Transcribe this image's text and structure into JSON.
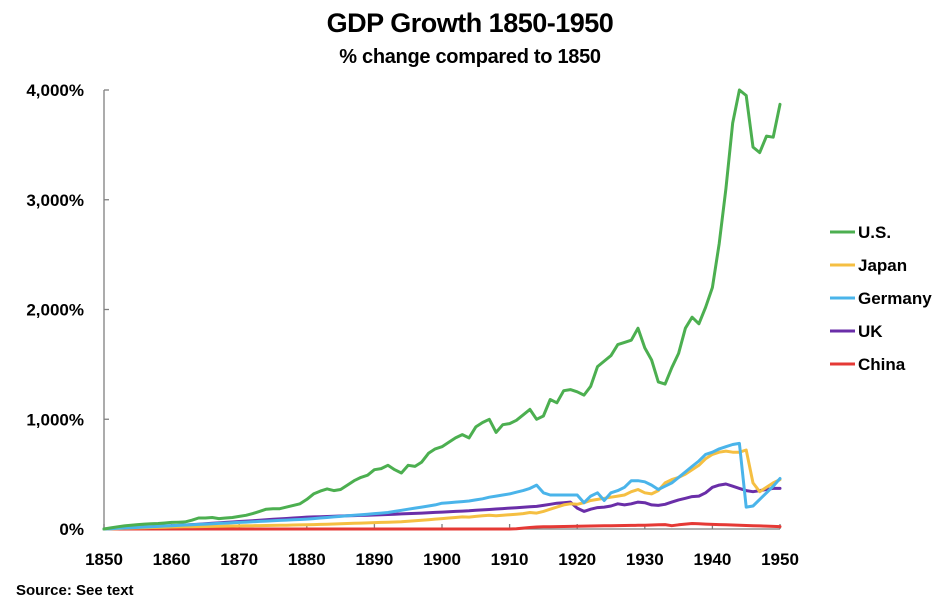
{
  "chart_data": {
    "type": "line",
    "title": "GDP Growth 1850-1950",
    "subtitle": "% change compared to 1850",
    "xlabel": "",
    "ylabel": "",
    "source": "Source: See text",
    "xlim": [
      1850,
      1950
    ],
    "ylim": [
      0,
      4000
    ],
    "x_ticks": [
      1850,
      1860,
      1870,
      1880,
      1890,
      1900,
      1910,
      1920,
      1930,
      1940,
      1950
    ],
    "y_ticks": [
      0,
      1000,
      2000,
      3000,
      4000
    ],
    "y_tick_labels": [
      "0%",
      "1,000%",
      "2,000%",
      "3,000%",
      "4,000%"
    ],
    "grid": false,
    "legend_position": "right",
    "x": [
      1850,
      1851,
      1852,
      1853,
      1854,
      1855,
      1856,
      1857,
      1858,
      1859,
      1860,
      1861,
      1862,
      1863,
      1864,
      1865,
      1866,
      1867,
      1868,
      1869,
      1870,
      1871,
      1872,
      1873,
      1874,
      1875,
      1876,
      1877,
      1878,
      1879,
      1880,
      1881,
      1882,
      1883,
      1884,
      1885,
      1886,
      1887,
      1888,
      1889,
      1890,
      1891,
      1892,
      1893,
      1894,
      1895,
      1896,
      1897,
      1898,
      1899,
      1900,
      1901,
      1902,
      1903,
      1904,
      1905,
      1906,
      1907,
      1908,
      1909,
      1910,
      1911,
      1912,
      1913,
      1914,
      1915,
      1916,
      1917,
      1918,
      1919,
      1920,
      1921,
      1922,
      1923,
      1924,
      1925,
      1926,
      1927,
      1928,
      1929,
      1930,
      1931,
      1932,
      1933,
      1934,
      1935,
      1936,
      1937,
      1938,
      1939,
      1940,
      1941,
      1942,
      1943,
      1944,
      1945,
      1946,
      1947,
      1948,
      1949,
      1950
    ],
    "series": [
      {
        "name": "U.S.",
        "color": "#4caf50",
        "values": [
          0,
          10,
          20,
          28,
          35,
          40,
          45,
          48,
          50,
          55,
          60,
          62,
          65,
          80,
          100,
          100,
          105,
          95,
          100,
          105,
          115,
          125,
          140,
          160,
          180,
          185,
          185,
          200,
          215,
          230,
          270,
          320,
          345,
          365,
          350,
          360,
          400,
          440,
          470,
          490,
          540,
          550,
          580,
          540,
          510,
          580,
          570,
          610,
          690,
          730,
          750,
          790,
          830,
          860,
          830,
          930,
          970,
          1000,
          880,
          950,
          960,
          990,
          1040,
          1090,
          1000,
          1030,
          1180,
          1150,
          1260,
          1270,
          1250,
          1220,
          1300,
          1480,
          1530,
          1580,
          1680,
          1700,
          1720,
          1830,
          1650,
          1540,
          1340,
          1320,
          1470,
          1600,
          1830,
          1930,
          1870,
          2020,
          2200,
          2600,
          3100,
          3700,
          4000,
          3950,
          3480,
          3430,
          3580,
          3570,
          3870
        ]
      },
      {
        "name": "Japan",
        "color": "#f5bf42",
        "values": [
          0,
          2,
          4,
          6,
          8,
          10,
          12,
          14,
          15,
          16,
          18,
          19,
          20,
          21,
          22,
          23,
          24,
          25,
          26,
          27,
          28,
          29,
          30,
          31,
          32,
          33,
          34,
          35,
          36,
          37,
          38,
          40,
          42,
          44,
          46,
          48,
          50,
          52,
          54,
          56,
          58,
          60,
          62,
          64,
          66,
          70,
          75,
          80,
          85,
          90,
          95,
          100,
          105,
          110,
          108,
          115,
          120,
          125,
          120,
          125,
          130,
          135,
          140,
          150,
          145,
          160,
          180,
          200,
          220,
          230,
          225,
          240,
          260,
          270,
          280,
          290,
          300,
          310,
          340,
          360,
          330,
          320,
          350,
          420,
          450,
          470,
          500,
          540,
          580,
          640,
          680,
          700,
          710,
          700,
          700,
          720,
          420,
          340,
          380,
          420,
          450
        ]
      },
      {
        "name": "Germany",
        "color": "#4ab4ea",
        "values": [
          0,
          3,
          6,
          9,
          12,
          15,
          18,
          21,
          24,
          27,
          30,
          33,
          36,
          39,
          42,
          45,
          48,
          51,
          54,
          57,
          60,
          63,
          66,
          69,
          72,
          75,
          78,
          81,
          84,
          87,
          90,
          95,
          100,
          105,
          110,
          115,
          120,
          125,
          130,
          135,
          140,
          145,
          150,
          160,
          170,
          180,
          190,
          200,
          210,
          220,
          235,
          240,
          245,
          250,
          255,
          265,
          275,
          290,
          300,
          310,
          320,
          335,
          350,
          370,
          400,
          330,
          310,
          310,
          310,
          310,
          310,
          240,
          300,
          330,
          260,
          330,
          350,
          380,
          440,
          440,
          430,
          400,
          360,
          390,
          420,
          470,
          520,
          570,
          620,
          680,
          700,
          730,
          750,
          770,
          780,
          200,
          210,
          270,
          330,
          390,
          460
        ]
      },
      {
        "name": "UK",
        "color": "#6a2ea8",
        "values": [
          0,
          3,
          6,
          9,
          12,
          15,
          18,
          21,
          24,
          27,
          30,
          33,
          36,
          40,
          44,
          48,
          52,
          56,
          60,
          64,
          68,
          72,
          76,
          80,
          84,
          88,
          92,
          96,
          100,
          104,
          108,
          110,
          112,
          114,
          116,
          118,
          120,
          122,
          124,
          126,
          128,
          130,
          132,
          135,
          138,
          140,
          142,
          145,
          148,
          151,
          154,
          157,
          160,
          163,
          166,
          170,
          174,
          178,
          182,
          186,
          190,
          194,
          198,
          202,
          206,
          215,
          225,
          235,
          240,
          245,
          190,
          160,
          180,
          195,
          200,
          210,
          230,
          220,
          230,
          245,
          240,
          220,
          215,
          225,
          245,
          265,
          280,
          295,
          300,
          330,
          380,
          400,
          410,
          390,
          370,
          350,
          340,
          350,
          360,
          370,
          370
        ]
      },
      {
        "name": "China",
        "color": "#e53935",
        "values": [
          0,
          0,
          0,
          0,
          0,
          0,
          0,
          0,
          0,
          0,
          0,
          0,
          0,
          0,
          0,
          0,
          0,
          0,
          0,
          0,
          0,
          0,
          0,
          0,
          0,
          0,
          0,
          0,
          0,
          0,
          0,
          0,
          0,
          0,
          0,
          0,
          0,
          0,
          0,
          0,
          0,
          0,
          0,
          0,
          0,
          0,
          0,
          0,
          0,
          0,
          0,
          0,
          0,
          0,
          0,
          0,
          0,
          0,
          0,
          0,
          0,
          2,
          8,
          14,
          18,
          20,
          21,
          22,
          23,
          24,
          25,
          26,
          27,
          28,
          29,
          30,
          31,
          32,
          33,
          34,
          35,
          36,
          38,
          40,
          30,
          38,
          45,
          50,
          48,
          45,
          42,
          40,
          38,
          36,
          34,
          32,
          30,
          28,
          26,
          24,
          22
        ]
      }
    ]
  }
}
